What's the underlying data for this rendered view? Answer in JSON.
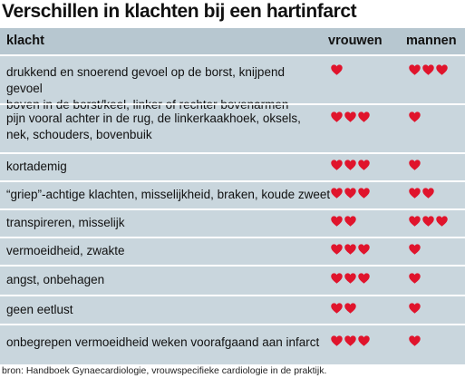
{
  "title": "Verschillen in klachten bij een hartinfarct",
  "header": {
    "col1": "klacht",
    "col2": "vrouwen",
    "col3": "mannen"
  },
  "heart_color": "#e0142c",
  "rows": [
    {
      "line1": "drukkend en snoerend gevoel op de borst, knijpend gevoel",
      "line2": "boven in de borst/keel, linker of rechter bovenarmen",
      "vrouwen": 1,
      "mannen": 3
    },
    {
      "line1": "pijn vooral achter in de rug, de linkerkaakhoek, oksels,",
      "line2": "nek, schouders, bovenbuik",
      "vrouwen": 3,
      "mannen": 1
    },
    {
      "line1": "kortademig",
      "line2": "",
      "vrouwen": 3,
      "mannen": 1
    },
    {
      "line1": "“griep”-achtige klachten, misselijkheid, braken, koude zweet",
      "line2": "",
      "vrouwen": 3,
      "mannen": 2
    },
    {
      "line1": "transpireren, misselijk",
      "line2": "",
      "vrouwen": 2,
      "mannen": 3
    },
    {
      "line1": "vermoeidheid, zwakte",
      "line2": "",
      "vrouwen": 3,
      "mannen": 1
    },
    {
      "line1": "angst, onbehagen",
      "line2": "",
      "vrouwen": 3,
      "mannen": 1
    },
    {
      "line1": "geen eetlust",
      "line2": "",
      "vrouwen": 2,
      "mannen": 1
    },
    {
      "line1": "onbegrepen vermoeidheid weken voorafgaand aan infarct",
      "line2": "",
      "vrouwen": 3,
      "mannen": 1
    }
  ],
  "source": "bron: Handboek Gynaecardiologie, vrouwspecifieke cardiologie in de praktijk."
}
